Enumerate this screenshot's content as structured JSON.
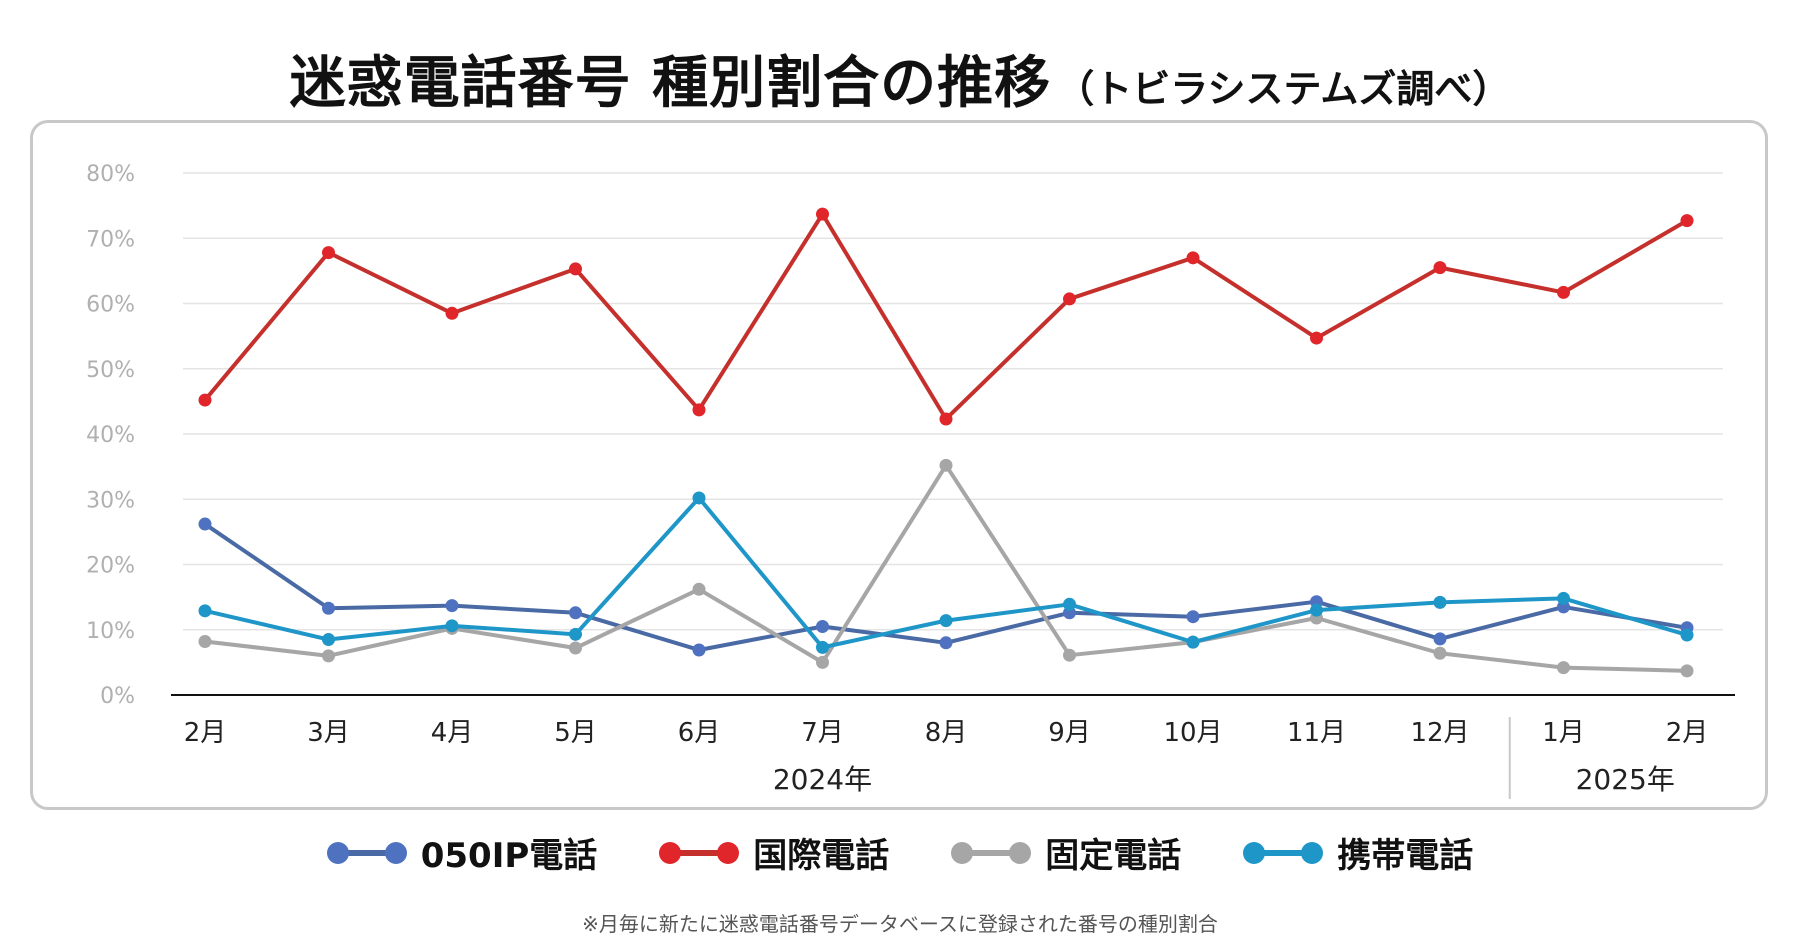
{
  "title": "迷惑電話番号 種別割合の推移",
  "subtitle": "（トビラシステムズ調べ）",
  "footnote": "※月毎に新たに迷惑電話番号データベースに登録された番号の種別割合",
  "chart_data": {
    "type": "line",
    "categories": [
      "2月",
      "3月",
      "4月",
      "5月",
      "6月",
      "7月",
      "8月",
      "9月",
      "10月",
      "11月",
      "12月",
      "1月",
      "2月"
    ],
    "year_groups": [
      {
        "label": "2024年",
        "start": 0,
        "end": 10
      },
      {
        "label": "2025年",
        "start": 11,
        "end": 12
      }
    ],
    "y_ticks": [
      "0%",
      "10%",
      "20%",
      "30%",
      "40%",
      "50%",
      "60%",
      "70%",
      "80%"
    ],
    "ylim": [
      0,
      80
    ],
    "grid": true,
    "legend_position": "bottom",
    "series": [
      {
        "name": "050IP電話",
        "color": "#4a6aa5",
        "marker": "#4f72c0",
        "values": [
          26.2,
          13.3,
          13.7,
          12.6,
          6.9,
          10.5,
          8.0,
          12.6,
          12.0,
          14.3,
          8.6,
          13.5,
          10.3
        ]
      },
      {
        "name": "国際電話",
        "color": "#c5302c",
        "marker": "#e0262a",
        "values": [
          45.2,
          67.8,
          58.5,
          65.3,
          43.7,
          73.7,
          42.3,
          60.7,
          67.0,
          54.7,
          65.5,
          61.7,
          72.7
        ]
      },
      {
        "name": "固定電話",
        "color": "#a6a6a6",
        "marker": "#a6a6a6",
        "values": [
          8.2,
          6.0,
          10.2,
          7.2,
          16.2,
          5.0,
          35.2,
          6.1,
          8.1,
          11.8,
          6.4,
          4.2,
          3.7
        ]
      },
      {
        "name": "携帯電話",
        "color": "#1f96c8",
        "marker": "#1f96c8",
        "values": [
          12.9,
          8.5,
          10.6,
          9.3,
          30.2,
          7.3,
          11.4,
          13.9,
          8.1,
          13.0,
          14.2,
          14.8,
          9.2
        ]
      }
    ]
  }
}
